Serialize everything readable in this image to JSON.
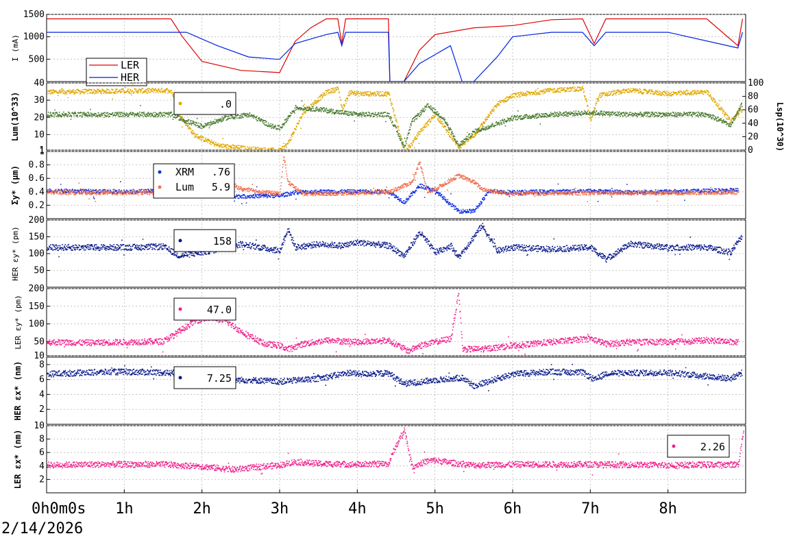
{
  "window": {
    "date_label": "2/14/2026"
  },
  "x_axis": {
    "unit": "hours",
    "range": [
      0,
      9
    ],
    "tick_labels": [
      "0h0m0s",
      "1h",
      "2h",
      "3h",
      "4h",
      "5h",
      "6h",
      "7h",
      "8h"
    ]
  },
  "colors": {
    "ler": "#dd0000",
    "her": "#0022dd",
    "gold": "#e0a800",
    "green": "#4a7a30",
    "salmon": "#f07050",
    "xrm": "#1030e0",
    "navy": "#0a1a8a",
    "pink": "#f0208c"
  },
  "chart_data": [
    {
      "id": "current",
      "type": "line",
      "ylabel": "I (mA)",
      "ylim": [
        0,
        1500
      ],
      "yticks": [
        500,
        1000,
        1500
      ],
      "legend": {
        "position": "bottom-left",
        "entries": [
          "LER",
          "HER"
        ]
      },
      "series": [
        {
          "name": "LER",
          "color": "#dd0000",
          "x": [
            0,
            1.6,
            1.62,
            1.75,
            2.0,
            2.5,
            3.0,
            3.2,
            3.4,
            3.6,
            3.75,
            3.8,
            3.85,
            4.0,
            4.4,
            4.42,
            4.6,
            4.8,
            5.0,
            5.5,
            6.0,
            6.5,
            6.9,
            7.05,
            7.2,
            7.5,
            8.0,
            8.5,
            8.9,
            8.96
          ],
          "y": [
            1400,
            1400,
            1350,
            1000,
            450,
            250,
            200,
            900,
            1200,
            1400,
            1400,
            850,
            1400,
            1400,
            1400,
            0,
            0,
            700,
            1050,
            1200,
            1250,
            1380,
            1400,
            850,
            1400,
            1400,
            1400,
            1400,
            800,
            1400
          ]
        },
        {
          "name": "HER",
          "color": "#0022dd",
          "x": [
            0,
            1.6,
            1.8,
            2.2,
            2.6,
            2.95,
            3.0,
            3.2,
            3.4,
            3.6,
            3.75,
            3.8,
            3.85,
            4.0,
            4.4,
            4.42,
            4.6,
            4.8,
            5.2,
            5.35,
            5.5,
            5.8,
            6.0,
            6.5,
            6.9,
            7.05,
            7.2,
            8.0,
            8.9,
            8.96
          ],
          "y": [
            1100,
            1100,
            1100,
            800,
            550,
            500,
            500,
            850,
            950,
            1050,
            1100,
            800,
            1100,
            1100,
            1100,
            0,
            0,
            400,
            800,
            0,
            0,
            550,
            1000,
            1100,
            1100,
            800,
            1100,
            1100,
            750,
            1100
          ]
        }
      ]
    },
    {
      "id": "luminosity",
      "type": "scatter",
      "ylabel": "Lum(10^33)",
      "ylim": [
        1,
        40
      ],
      "yticks": [
        1,
        10,
        20,
        30,
        40
      ],
      "y2label": "Lsp(10^30)",
      "y2lim": [
        0,
        100
      ],
      "y2ticks": [
        0,
        20,
        40,
        60,
        80,
        100
      ],
      "legend": {
        "position": "top-left",
        "value": ".0"
      },
      "series": [
        {
          "name": "",
          "color": "#e0a800",
          "x": [
            0,
            1.6,
            1.7,
            1.9,
            2.2,
            2.6,
            3.0,
            3.1,
            3.3,
            3.6,
            3.75,
            3.8,
            3.9,
            4.0,
            4.4,
            4.6,
            4.7,
            4.8,
            5.0,
            5.3,
            5.5,
            5.8,
            6.0,
            6.5,
            6.9,
            7.0,
            7.1,
            7.5,
            8.0,
            8.5,
            8.8,
            8.95
          ],
          "y": [
            35,
            36,
            22,
            10,
            4,
            2,
            1,
            5,
            23,
            35,
            37,
            25,
            35,
            34,
            34,
            1,
            5,
            12,
            22,
            3,
            10,
            28,
            33,
            36,
            37,
            19,
            33,
            36,
            34,
            35,
            18,
            25
          ]
        },
        {
          "name": "",
          "color": "#4a7a30",
          "x": [
            0,
            1.6,
            1.8,
            2.0,
            2.3,
            2.6,
            2.9,
            3.0,
            3.2,
            3.5,
            3.8,
            4.0,
            4.4,
            4.6,
            4.7,
            4.9,
            5.1,
            5.3,
            5.5,
            6.0,
            6.5,
            7.0,
            7.5,
            8.0,
            8.5,
            8.8,
            8.95
          ],
          "y": [
            22,
            22,
            18,
            15,
            20,
            22,
            15,
            14,
            26,
            25,
            23,
            22,
            22,
            3,
            18,
            27,
            20,
            4,
            12,
            20,
            22,
            23,
            22,
            22,
            22,
            16,
            28
          ]
        }
      ]
    },
    {
      "id": "sigma_y",
      "type": "scatter",
      "ylabel": "Σy* (µm)",
      "ylim": [
        0,
        1.0
      ],
      "yticks": [
        0.2,
        0.4,
        0.6,
        0.8,
        1.0
      ],
      "legend": {
        "position": "top-left",
        "entries": [
          {
            "label": "XRM",
            "value": ".76"
          },
          {
            "label": "Lum",
            "value": "5.9"
          }
        ]
      },
      "series": [
        {
          "name": "XRM",
          "color": "#1030e0",
          "x": [
            0,
            1.0,
            1.5,
            2.0,
            2.5,
            3.0,
            3.2,
            3.5,
            4.0,
            4.4,
            4.6,
            4.8,
            5.0,
            5.3,
            5.5,
            5.7,
            6.0,
            7.0,
            7.5,
            8.0,
            8.9
          ],
          "y": [
            0.42,
            0.41,
            0.42,
            0.36,
            0.34,
            0.35,
            0.4,
            0.41,
            0.41,
            0.41,
            0.25,
            0.5,
            0.42,
            0.12,
            0.12,
            0.42,
            0.4,
            0.42,
            0.4,
            0.41,
            0.43
          ]
        },
        {
          "name": "Lum",
          "color": "#f07050",
          "x": [
            0,
            1.0,
            1.6,
            1.8,
            2.0,
            2.2,
            2.5,
            2.8,
            3.0,
            3.05,
            3.1,
            3.3,
            3.5,
            4.0,
            4.4,
            4.7,
            4.8,
            4.9,
            5.0,
            5.3,
            5.5,
            5.6,
            5.8,
            6.0,
            7.0,
            8.0,
            8.9
          ],
          "y": [
            0.4,
            0.39,
            0.4,
            0.58,
            0.72,
            0.62,
            0.45,
            0.4,
            0.38,
            0.95,
            0.55,
            0.38,
            0.38,
            0.39,
            0.4,
            0.55,
            0.85,
            0.4,
            0.45,
            0.65,
            0.55,
            0.45,
            0.4,
            0.38,
            0.39,
            0.39,
            0.4
          ]
        }
      ]
    },
    {
      "id": "her_emit_y",
      "type": "scatter",
      "ylabel": "HER εy* (pm)",
      "ylim": [
        0,
        200
      ],
      "yticks": [
        50,
        100,
        150,
        200
      ],
      "legend": {
        "position": "top-left",
        "value": "158"
      },
      "series": [
        {
          "name": "",
          "color": "#0a1a8a",
          "x": [
            0,
            0.5,
            1.0,
            1.5,
            1.7,
            2.0,
            2.5,
            3.0,
            3.1,
            3.2,
            3.5,
            3.8,
            4.0,
            4.4,
            4.6,
            4.8,
            5.0,
            5.2,
            5.3,
            5.6,
            5.8,
            6.0,
            6.5,
            7.0,
            7.2,
            7.5,
            8.0,
            8.5,
            8.8,
            8.95
          ],
          "y": [
            120,
            120,
            120,
            122,
            95,
            105,
            130,
            110,
            175,
            120,
            130,
            125,
            135,
            125,
            95,
            165,
            105,
            125,
            90,
            185,
            110,
            120,
            115,
            120,
            85,
            130,
            120,
            120,
            105,
            155
          ]
        }
      ]
    },
    {
      "id": "ler_emit_y",
      "type": "scatter",
      "ylabel": "LER εy* (pm)",
      "ylim": [
        10,
        200
      ],
      "yticks": [
        10,
        50,
        100,
        150,
        200
      ],
      "legend": {
        "position": "top-left",
        "value": "47.0"
      },
      "series": [
        {
          "name": "",
          "color": "#f0208c",
          "x": [
            0,
            0.5,
            1.0,
            1.5,
            1.7,
            1.9,
            2.1,
            2.3,
            2.5,
            2.8,
            3.0,
            3.1,
            3.3,
            3.6,
            4.0,
            4.4,
            4.65,
            4.8,
            5.0,
            5.2,
            5.3,
            5.35,
            5.6,
            6.0,
            6.5,
            7.0,
            7.2,
            7.5,
            8.0,
            8.5,
            8.9
          ],
          "y": [
            50,
            48,
            50,
            52,
            80,
            110,
            120,
            110,
            80,
            45,
            40,
            30,
            45,
            55,
            50,
            55,
            25,
            40,
            50,
            60,
            190,
            30,
            30,
            40,
            50,
            60,
            45,
            50,
            50,
            55,
            50
          ]
        }
      ]
    },
    {
      "id": "her_emit_x",
      "type": "scatter",
      "ylabel": "HER εx* (nm)",
      "ylim": [
        0,
        9
      ],
      "yticks": [
        2,
        4,
        6,
        8
      ],
      "legend": {
        "position": "top-left",
        "value": "7.25"
      },
      "series": [
        {
          "name": "",
          "color": "#0a1a8a",
          "x": [
            0,
            0.5,
            1.0,
            1.5,
            1.8,
            2.2,
            2.6,
            3.0,
            3.5,
            3.9,
            4.0,
            4.4,
            4.6,
            4.7,
            5.0,
            5.35,
            5.5,
            5.8,
            6.0,
            6.5,
            6.9,
            7.05,
            7.2,
            8.0,
            8.8,
            8.95
          ],
          "y": [
            6.8,
            7.0,
            7.1,
            7.0,
            6.8,
            6.0,
            6.0,
            5.8,
            6.2,
            7.0,
            6.8,
            6.9,
            5.5,
            5.6,
            6.0,
            6.3,
            5.2,
            6.2,
            6.8,
            7.1,
            7.0,
            6.0,
            6.9,
            7.0,
            6.2,
            7.0
          ]
        }
      ]
    },
    {
      "id": "ler_emit_x",
      "type": "scatter",
      "ylabel": "LER εx* (nm)",
      "ylim": [
        0,
        10
      ],
      "yticks": [
        2,
        4,
        6,
        8,
        10
      ],
      "legend": {
        "position": "top-right",
        "value": "2.26"
      },
      "series": [
        {
          "name": "",
          "color": "#f0208c",
          "x": [
            0,
            0.5,
            1.0,
            1.5,
            2.0,
            2.4,
            2.6,
            3.0,
            3.2,
            3.5,
            4.0,
            4.4,
            4.45,
            4.6,
            4.7,
            4.9,
            5.0,
            5.3,
            5.5,
            6.0,
            7.0,
            8.0,
            8.9,
            8.97
          ],
          "y": [
            4.2,
            4.3,
            4.3,
            4.3,
            4.0,
            3.5,
            3.8,
            4.2,
            4.7,
            4.4,
            4.3,
            4.4,
            6.0,
            9.5,
            4.0,
            4.8,
            4.9,
            4.4,
            4.2,
            4.3,
            4.3,
            4.2,
            4.3,
            9.5
          ]
        }
      ]
    }
  ]
}
